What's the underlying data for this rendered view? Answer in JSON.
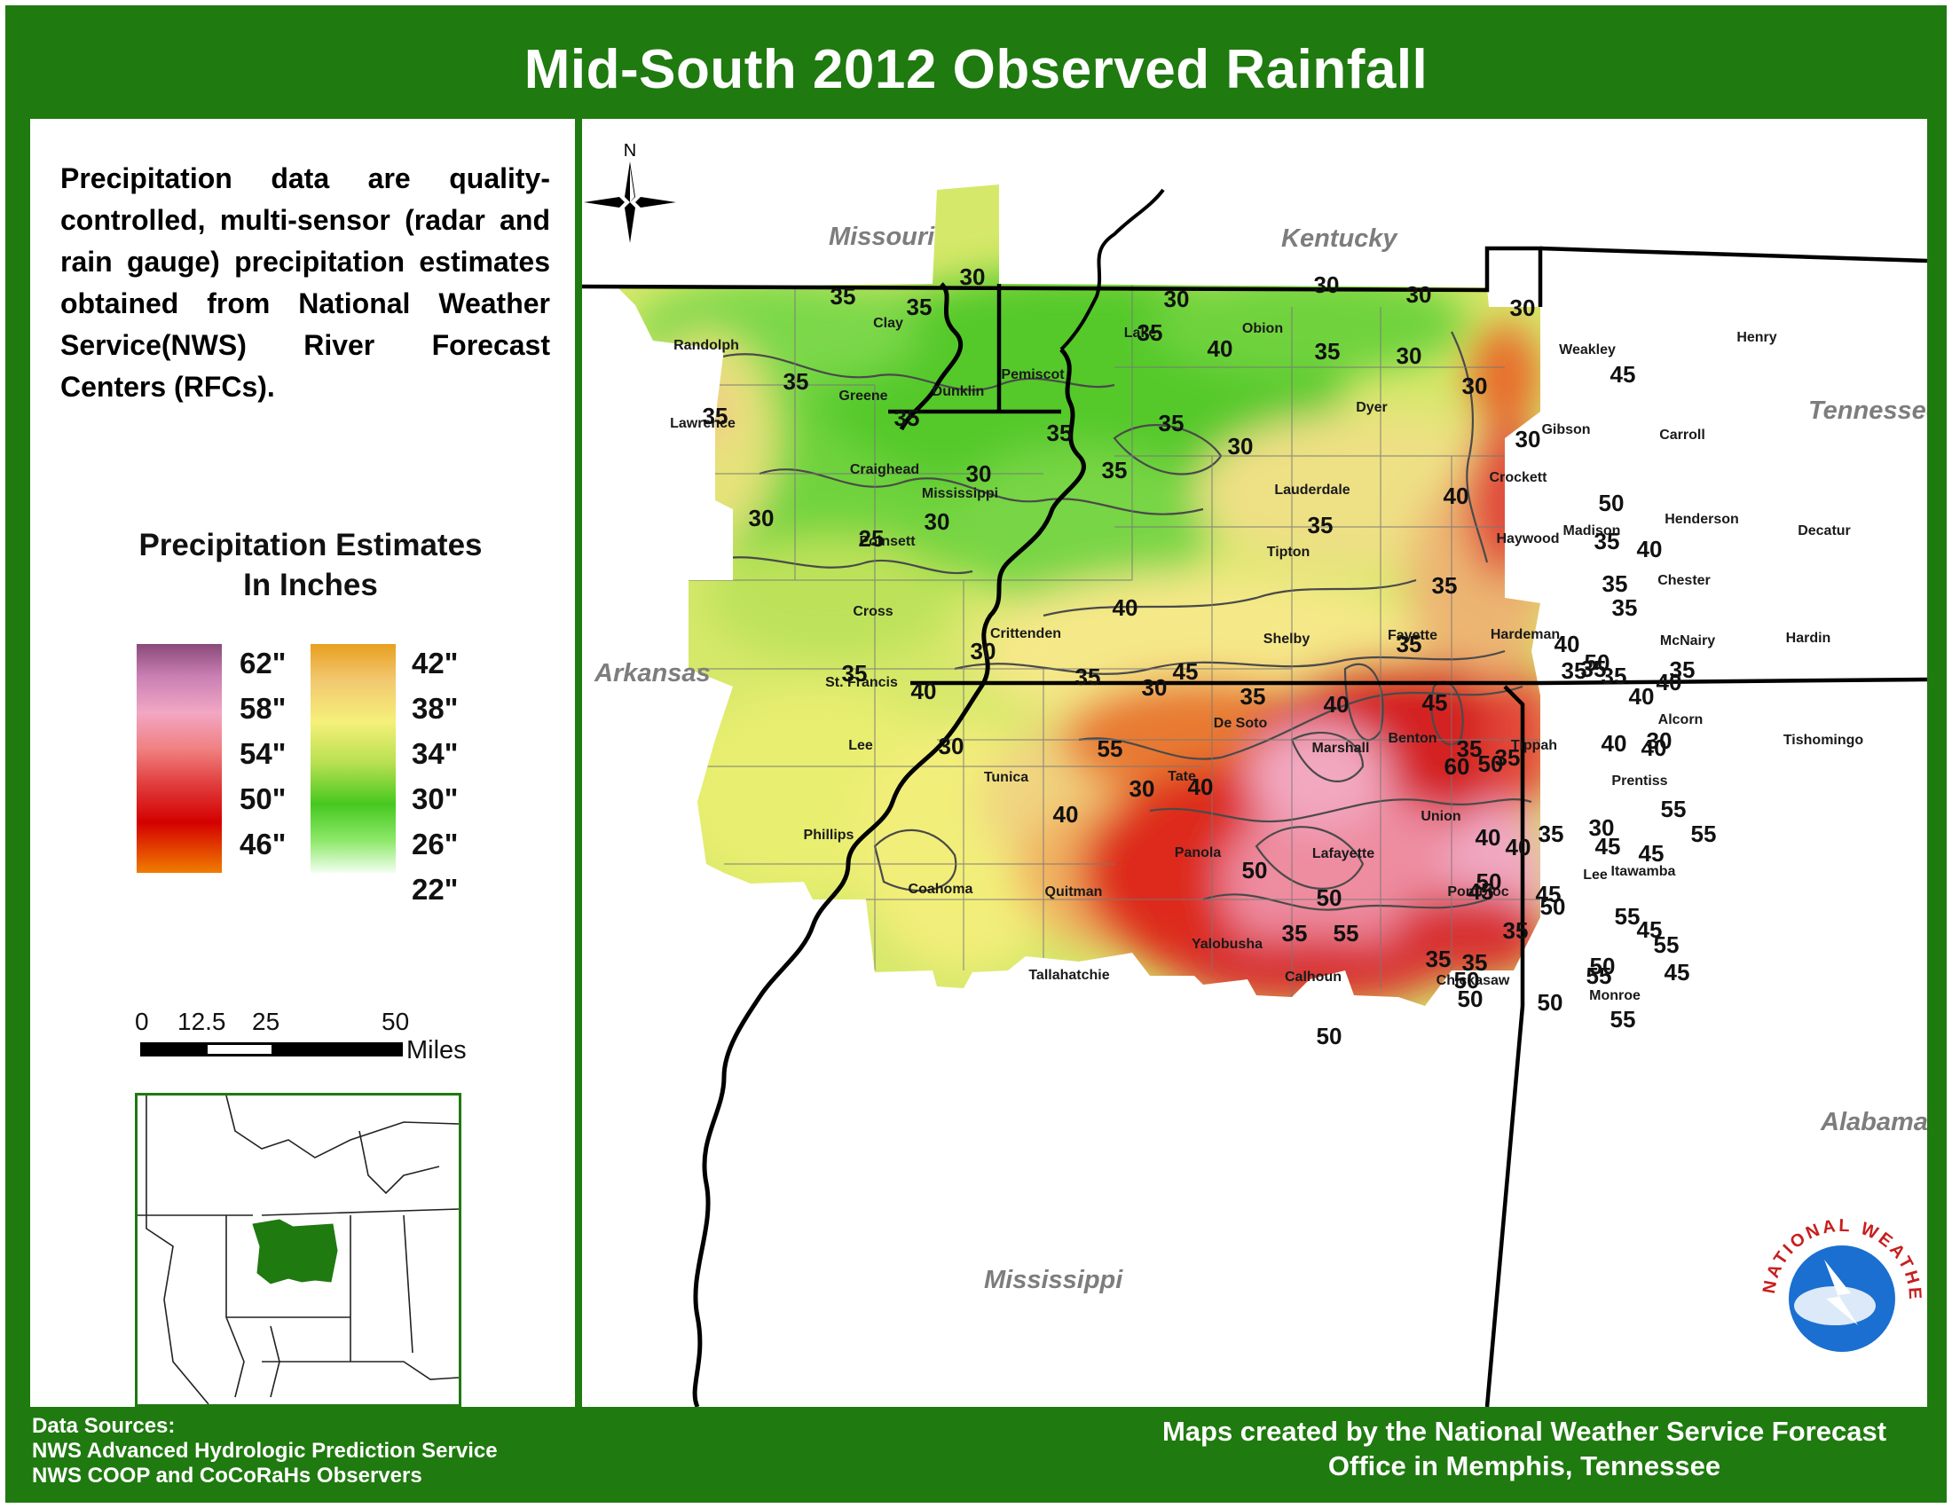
{
  "title": "Mid-South 2012 Observed Rainfall",
  "description": "Precipitation data are quality-controlled, multi-sensor (radar and rain gauge) precipitation estimates obtained from National Weather Service(NWS) River Forecast Centers (RFCs).",
  "legend": {
    "title_line1": "Precipitation Estimates",
    "title_line2": "In Inches",
    "left_labels": [
      "62\"",
      "58\"",
      "54\"",
      "50\"",
      "46\""
    ],
    "right_labels": [
      "42\"",
      "38\"",
      "34\"",
      "30\"",
      "26\"",
      "22\""
    ],
    "left_colors": [
      "#8a4a78",
      "#f2a7c4",
      "#f08080",
      "#e03a3a",
      "#d40000",
      "#f07d00"
    ],
    "right_colors": [
      "#e8a020",
      "#f5f07a",
      "#b8e050",
      "#46c820",
      "#f2fff0"
    ]
  },
  "scale": {
    "ticks": [
      "0",
      "12.5",
      "25",
      "50"
    ],
    "unit": "Miles"
  },
  "compass": {
    "north_label": "N"
  },
  "states": [
    "Missouri",
    "Kentucky",
    "Tennessee",
    "Arkansas",
    "Mississippi",
    "Alabama"
  ],
  "counties": [
    "Randolph",
    "Clay",
    "Lawrence",
    "Greene",
    "Dunklin",
    "Pemiscot",
    "Lake",
    "Obion",
    "Weakley",
    "Henry",
    "Dyer",
    "Gibson",
    "Carroll",
    "Craighead",
    "Mississippi",
    "Lauderdale",
    "Crockett",
    "Poinsett",
    "Tipton",
    "Haywood",
    "Madison",
    "Henderson",
    "Decatur",
    "Chester",
    "Cross",
    "Crittenden",
    "Shelby",
    "Fayette",
    "Hardeman",
    "McNairy",
    "Hardin",
    "St. Francis",
    "Alcorn",
    "Tishomingo",
    "De Soto",
    "Marshall",
    "Benton",
    "Tippah",
    "Lee",
    "Tunica",
    "Tate",
    "Prentiss",
    "Union",
    "Phillips",
    "Panola",
    "Lafayette",
    "Itawamba",
    "Coahoma",
    "Quitman",
    "Pontotoc",
    "Lee",
    "Yalobusha",
    "Tallahatchie",
    "Calhoun",
    "Chickasaw",
    "Monroe"
  ],
  "contour_labels": [
    "30",
    "35",
    "35",
    "30",
    "30",
    "30",
    "30",
    "35",
    "40",
    "35",
    "30",
    "30",
    "45",
    "35",
    "35",
    "35",
    "35",
    "30",
    "35",
    "30",
    "35",
    "30",
    "40",
    "30",
    "50",
    "30",
    "35",
    "25",
    "35",
    "40",
    "35",
    "35",
    "30",
    "35",
    "40",
    "40",
    "35",
    "40",
    "35",
    "30",
    "35",
    "35",
    "35",
    "45",
    "40",
    "50",
    "35",
    "45",
    "35",
    "40",
    "35",
    "40",
    "40",
    "60",
    "35",
    "30",
    "35",
    "30",
    "55",
    "40",
    "40",
    "30",
    "50",
    "40",
    "30",
    "35",
    "55",
    "55",
    "40",
    "40",
    "45",
    "50",
    "45",
    "50",
    "50",
    "45",
    "50",
    "45",
    "35",
    "55",
    "55",
    "45",
    "35",
    "55",
    "55",
    "35",
    "35",
    "50",
    "50",
    "50",
    "45",
    "50",
    "55",
    "50"
  ],
  "footer": {
    "sources_title": "Data Sources:",
    "source_1": "NWS Advanced Hydrologic Prediction Service",
    "source_2": "NWS COOP and CoCoRaHs Observers",
    "credit_line1": "Maps created by the National Weather Service Forecast",
    "credit_line2": "Office in Memphis, Tennessee"
  },
  "logo": {
    "text": "NATIONAL WEATHER SERVICE"
  }
}
